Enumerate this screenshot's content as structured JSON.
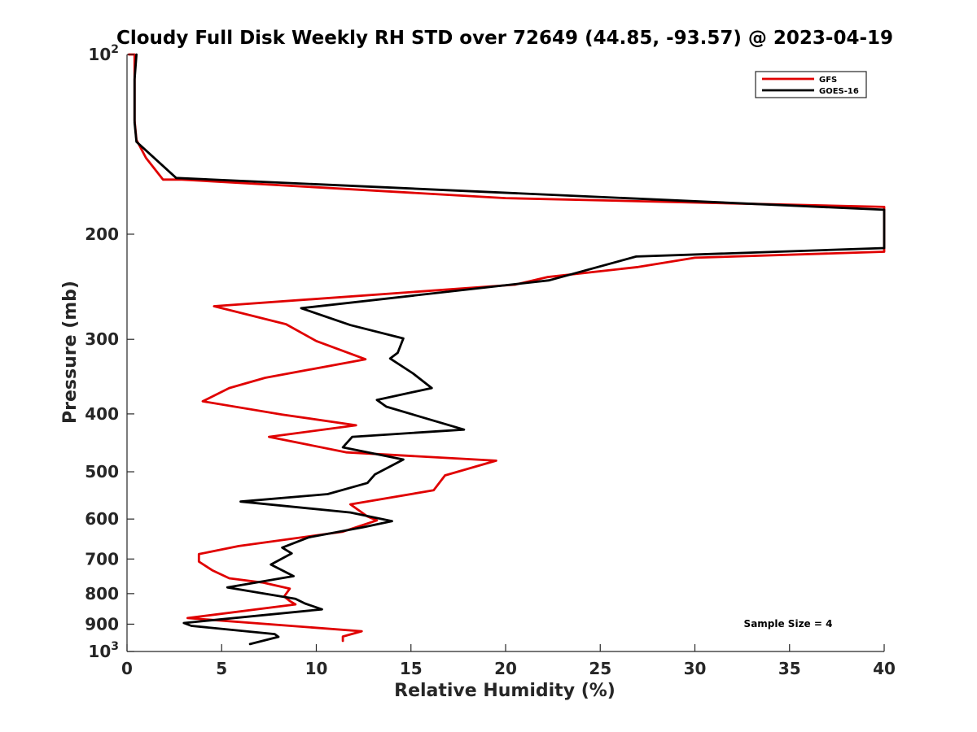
{
  "chart_data": {
    "type": "line",
    "title": "Cloudy Full Disk Weekly RH STD over 72649 (44.85, -93.57) @ 2023-04-19",
    "xlabel": "Relative Humidity (%)",
    "ylabel": "Pressure (mb)",
    "xlim": [
      0,
      40
    ],
    "ylim": [
      100,
      1000
    ],
    "yscale": "log",
    "y_reversed": true,
    "x_ticks": [
      0,
      5,
      10,
      15,
      20,
      25,
      30,
      35,
      40
    ],
    "x_tick_labels": [
      "0",
      "5",
      "10",
      "15",
      "20",
      "25",
      "30",
      "35",
      "40"
    ],
    "y_ticks": [
      100,
      200,
      300,
      400,
      500,
      600,
      700,
      800,
      900,
      1000
    ],
    "y_tick_labels": [
      {
        "base": "10",
        "exp": "2"
      },
      {
        "base": "200",
        "exp": ""
      },
      {
        "base": "300",
        "exp": ""
      },
      {
        "base": "400",
        "exp": ""
      },
      {
        "base": "500",
        "exp": ""
      },
      {
        "base": "600",
        "exp": ""
      },
      {
        "base": "700",
        "exp": ""
      },
      {
        "base": "800",
        "exp": ""
      },
      {
        "base": "900",
        "exp": ""
      },
      {
        "base": "10",
        "exp": "3"
      }
    ],
    "grid": false,
    "legend_position": "top-right",
    "annotation": "Sample Size = 4",
    "series": [
      {
        "name": "GFS",
        "color": "#e00000",
        "points": [
          [
            0.1,
            100
          ],
          [
            0.4,
            100
          ],
          [
            0.4,
            103
          ],
          [
            0.4,
            110
          ],
          [
            0.4,
            119
          ],
          [
            0.4,
            129
          ],
          [
            0.5,
            139
          ],
          [
            1.0,
            149
          ],
          [
            1.9,
            162
          ],
          [
            2.9,
            162
          ],
          [
            20.0,
            174
          ],
          [
            40.0,
            180
          ],
          [
            40.0,
            214
          ],
          [
            30.0,
            219
          ],
          [
            27.0,
            227
          ],
          [
            22.2,
            236
          ],
          [
            20.5,
            243
          ],
          [
            4.6,
            264
          ],
          [
            8.4,
            283
          ],
          [
            10.0,
            302
          ],
          [
            12.6,
            324
          ],
          [
            7.3,
            348
          ],
          [
            5.4,
            362
          ],
          [
            4.0,
            381
          ],
          [
            8.2,
            401
          ],
          [
            12.1,
            418
          ],
          [
            7.5,
            437
          ],
          [
            11.6,
            464
          ],
          [
            19.5,
            479
          ],
          [
            16.8,
            507
          ],
          [
            16.2,
            537
          ],
          [
            11.8,
            567
          ],
          [
            12.7,
            594
          ],
          [
            13.2,
            603
          ],
          [
            11.4,
            630
          ],
          [
            5.9,
            666
          ],
          [
            3.8,
            687
          ],
          [
            3.8,
            707
          ],
          [
            4.5,
            731
          ],
          [
            5.4,
            754
          ],
          [
            7.2,
            767
          ],
          [
            8.6,
            785
          ],
          [
            8.3,
            809
          ],
          [
            8.6,
            823
          ],
          [
            8.9,
            834
          ],
          [
            3.2,
            879
          ],
          [
            12.4,
            925
          ],
          [
            11.4,
            944
          ],
          [
            11.4,
            960
          ]
        ]
      },
      {
        "name": "GOES-16",
        "color": "#000000",
        "points": [
          [
            0.5,
            100
          ],
          [
            0.4,
            110
          ],
          [
            0.4,
            120
          ],
          [
            0.4,
            130
          ],
          [
            0.5,
            140
          ],
          [
            2.6,
            161
          ],
          [
            40.0,
            182
          ],
          [
            40.0,
            211
          ],
          [
            26.9,
            218
          ],
          [
            22.3,
            239
          ],
          [
            9.2,
            266
          ],
          [
            11.8,
            284
          ],
          [
            14.6,
            299
          ],
          [
            14.3,
            316
          ],
          [
            13.9,
            323
          ],
          [
            15.1,
            342
          ],
          [
            16.1,
            362
          ],
          [
            13.2,
            379
          ],
          [
            13.7,
            389
          ],
          [
            17.8,
            425
          ],
          [
            11.9,
            437
          ],
          [
            11.4,
            455
          ],
          [
            14.6,
            477
          ],
          [
            13.1,
            505
          ],
          [
            12.7,
            522
          ],
          [
            10.6,
            545
          ],
          [
            6.0,
            561
          ],
          [
            11.8,
            585
          ],
          [
            14.0,
            605
          ],
          [
            12.5,
            619
          ],
          [
            9.6,
            644
          ],
          [
            8.2,
            670
          ],
          [
            8.7,
            685
          ],
          [
            7.6,
            715
          ],
          [
            8.8,
            748
          ],
          [
            5.3,
            781
          ],
          [
            8.9,
            816
          ],
          [
            9.4,
            831
          ],
          [
            10.3,
            850
          ],
          [
            3.0,
            896
          ],
          [
            3.4,
            906
          ],
          [
            7.8,
            935
          ],
          [
            8.0,
            945
          ],
          [
            6.5,
            972
          ]
        ]
      }
    ]
  }
}
